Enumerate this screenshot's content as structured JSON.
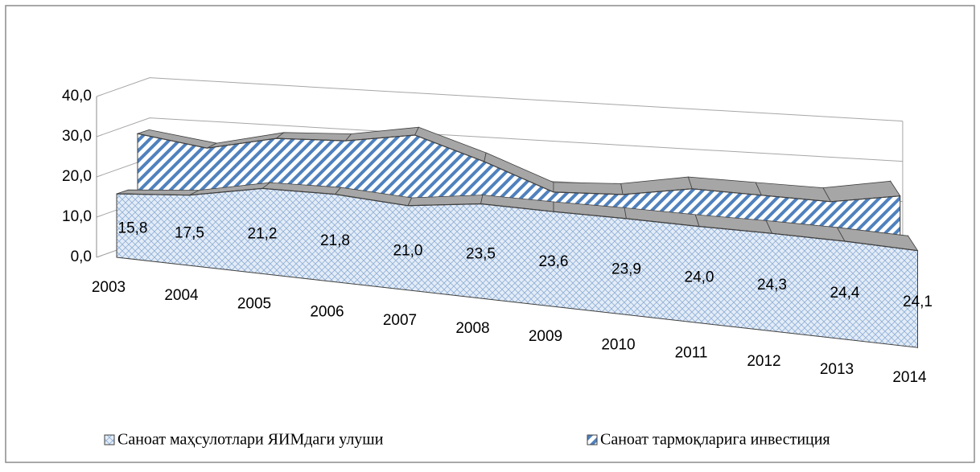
{
  "chart_data": {
    "type": "area3d",
    "categories": [
      "2003",
      "2004",
      "2005",
      "2006",
      "2007",
      "2008",
      "2009",
      "2010",
      "2011",
      "2012",
      "2013",
      "2014"
    ],
    "series": [
      {
        "name": "Саноат маҳсулотлари ЯИМдаги улуши",
        "color": "#c6d9f1",
        "values": [
          15.8,
          17.5,
          21.2,
          21.8,
          21.0,
          23.5,
          23.6,
          23.9,
          24.0,
          24.3,
          24.4,
          24.1
        ],
        "value_labels": [
          "15,8",
          "17,5",
          "21,2",
          "21,8",
          "21,0",
          "23,5",
          "23,6",
          "23,9",
          "24,0",
          "24,3",
          "24,4",
          "24,1"
        ]
      },
      {
        "name": "Саноат тармоқларига инвестиция",
        "color": "#4f81bd",
        "values": [
          29,
          27,
          31,
          32,
          35,
          30,
          24,
          25,
          28,
          28,
          28,
          31
        ]
      }
    ],
    "ylim": [
      0,
      40
    ],
    "yticks": [
      {
        "value": 0,
        "label": "0,0"
      },
      {
        "value": 10,
        "label": "10,0"
      },
      {
        "value": 20,
        "label": "20,0"
      },
      {
        "value": 30,
        "label": "30,0"
      },
      {
        "value": 40,
        "label": "40,0"
      }
    ],
    "grid": true
  }
}
